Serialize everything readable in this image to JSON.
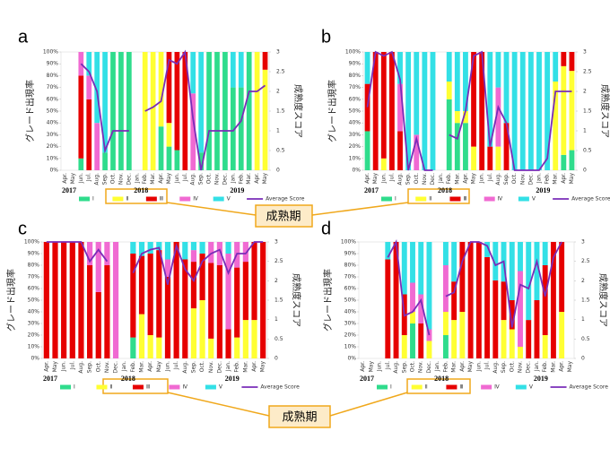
{
  "chart_data": [
    {
      "type": "bar",
      "panel": "a",
      "ylabel": "グレード出現率",
      "y2label": "成熟度スコア",
      "years": [
        "2017",
        "2018",
        "2019"
      ],
      "categories": [
        "Apr.",
        "May",
        "Jun.",
        "Jul.",
        "Aug.",
        "Sep.",
        "Oct.",
        "Nov.",
        "Dec.",
        "Jan.",
        "Feb.",
        "Mar.",
        "Apr.",
        "May",
        "Jun.",
        "Jul.",
        "Aug.",
        "Sep.",
        "Oct.",
        "Nov.",
        "Dec.",
        "Jan.",
        "Feb.",
        "Mar.",
        "Apr.",
        "May"
      ],
      "series": [
        {
          "name": "Ⅰ",
          "color": "#2fdc8c",
          "values": [
            0,
            0,
            10,
            0,
            0,
            15,
            100,
            100,
            100,
            0,
            0,
            0,
            37,
            20,
            17,
            0,
            0,
            15,
            100,
            100,
            100,
            70,
            70,
            100,
            0,
            0
          ]
        },
        {
          "name": "Ⅱ",
          "color": "#ffff33",
          "values": [
            0,
            0,
            0,
            0,
            0,
            0,
            0,
            0,
            0,
            0,
            100,
            100,
            63,
            20,
            0,
            0,
            0,
            0,
            0,
            0,
            0,
            0,
            0,
            0,
            100,
            85
          ]
        },
        {
          "name": "Ⅲ",
          "color": "#e60000",
          "values": [
            0,
            0,
            70,
            60,
            0,
            0,
            0,
            0,
            0,
            0,
            0,
            0,
            0,
            60,
            83,
            100,
            0,
            0,
            0,
            0,
            0,
            0,
            0,
            0,
            0,
            15
          ]
        },
        {
          "name": "Ⅳ",
          "color": "#f06ad2",
          "values": [
            0,
            0,
            20,
            20,
            40,
            0,
            0,
            0,
            0,
            0,
            0,
            0,
            0,
            0,
            0,
            0,
            65,
            0,
            0,
            0,
            0,
            0,
            0,
            0,
            0,
            0
          ]
        },
        {
          "name": "Ⅴ",
          "color": "#33e0e6",
          "values": [
            0,
            0,
            0,
            20,
            60,
            85,
            0,
            0,
            0,
            0,
            0,
            0,
            0,
            0,
            0,
            0,
            35,
            85,
            0,
            0,
            0,
            30,
            30,
            0,
            0,
            0
          ]
        },
        {
          "name": "Average Score",
          "color": "#7a2db8",
          "type": "line",
          "axis": "y2",
          "values": [
            null,
            null,
            2.7,
            2.5,
            2,
            0.5,
            1,
            1,
            1,
            null,
            1.5,
            1.6,
            1.75,
            2.8,
            2.7,
            3,
            1.3,
            0,
            1,
            1,
            1,
            1,
            1.25,
            2,
            2,
            2.15
          ]
        }
      ],
      "ylim": [
        0,
        100
      ],
      "yticks": [
        {
          "value": 0,
          "label": "0%"
        },
        {
          "value": 10,
          "label": "10%"
        },
        {
          "value": 20,
          "label": "20%"
        },
        {
          "value": 30,
          "label": "30%"
        },
        {
          "value": 40,
          "label": "40%"
        },
        {
          "value": 50,
          "label": "50%"
        },
        {
          "value": 60,
          "label": "60%"
        },
        {
          "value": 70,
          "label": "70%"
        },
        {
          "value": 80,
          "label": "80%"
        },
        {
          "value": 90,
          "label": "90%"
        },
        {
          "value": 100,
          "label": "100%"
        }
      ],
      "y2lim": [
        0,
        3
      ],
      "y2ticks": [
        0,
        0.5,
        1,
        1.5,
        2,
        2.5,
        3
      ],
      "stacked": true
    },
    {
      "type": "bar",
      "panel": "b",
      "ylabel": "グレード出現率",
      "y2label": "成熟度スコア",
      "years": [
        "2017",
        "2018",
        "2019"
      ],
      "categories": [
        "Apr.",
        "May",
        "Jun.",
        "Jul.",
        "Aug.",
        "Sep.",
        "Oct.",
        "Nov.",
        "Dec.",
        "Jan.",
        "Feb.",
        "Mar.",
        "Apr.",
        "May",
        "Jun.",
        "Jul.",
        "Aug.",
        "Sep.",
        "Oct.",
        "Nov.",
        "Dec.",
        "Jan.",
        "Feb.",
        "Mar.",
        "Apr.",
        "May"
      ],
      "series": [
        {
          "name": "Ⅰ",
          "color": "#2fdc8c",
          "values": [
            33,
            0,
            0,
            0,
            0,
            0,
            0,
            0,
            0,
            0,
            60,
            40,
            40,
            0,
            0,
            0,
            0,
            0,
            0,
            0,
            0,
            0,
            0,
            0,
            13,
            17
          ]
        },
        {
          "name": "Ⅱ",
          "color": "#ffff33",
          "values": [
            0,
            0,
            10,
            0,
            0,
            0,
            0,
            0,
            0,
            0,
            15,
            10,
            10,
            20,
            0,
            0,
            20,
            0,
            0,
            0,
            0,
            0,
            0,
            75,
            75,
            67
          ]
        },
        {
          "name": "Ⅲ",
          "color": "#e60000",
          "values": [
            40,
            100,
            90,
            100,
            33,
            0,
            0,
            0,
            0,
            0,
            0,
            0,
            0,
            80,
            100,
            20,
            0,
            40,
            0,
            0,
            0,
            0,
            0,
            0,
            12,
            16
          ]
        },
        {
          "name": "Ⅳ",
          "color": "#f06ad2",
          "values": [
            0,
            0,
            0,
            0,
            40,
            0,
            30,
            0,
            0,
            0,
            0,
            0,
            0,
            0,
            0,
            0,
            50,
            0,
            0,
            0,
            0,
            0,
            0,
            0,
            0,
            0
          ]
        },
        {
          "name": "Ⅴ",
          "color": "#33e0e6",
          "values": [
            27,
            0,
            0,
            0,
            27,
            100,
            70,
            100,
            100,
            0,
            25,
            50,
            50,
            0,
            0,
            80,
            30,
            60,
            100,
            100,
            100,
            100,
            100,
            25,
            0,
            0
          ]
        },
        {
          "name": "Average Score",
          "color": "#7a2db8",
          "type": "line",
          "axis": "y2",
          "values": [
            1.6,
            3,
            2.9,
            3,
            2.3,
            0,
            0.8,
            0,
            0,
            null,
            0.9,
            0.8,
            1.5,
            2.9,
            3,
            0.6,
            1.6,
            1.2,
            0,
            0,
            0,
            0,
            0.3,
            2,
            2,
            2
          ]
        }
      ],
      "ylim": [
        0,
        100
      ],
      "yticks": [
        {
          "value": 0,
          "label": "0%"
        },
        {
          "value": 10,
          "label": "10%"
        },
        {
          "value": 20,
          "label": "20%"
        },
        {
          "value": 30,
          "label": "30%"
        },
        {
          "value": 40,
          "label": "40%"
        },
        {
          "value": 50,
          "label": "50%"
        },
        {
          "value": 60,
          "label": "60%"
        },
        {
          "value": 70,
          "label": "70%"
        },
        {
          "value": 80,
          "label": "80%"
        },
        {
          "value": 90,
          "label": "90%"
        },
        {
          "value": 100,
          "label": "100%"
        }
      ],
      "y2lim": [
        0,
        3
      ],
      "y2ticks": [
        0,
        0.5,
        1,
        1.5,
        2,
        2.5,
        3
      ],
      "stacked": true
    },
    {
      "type": "bar",
      "panel": "c",
      "ylabel": "グレード出現率",
      "y2label": "成熟度スコア",
      "years": [
        "2017",
        "2018",
        "2019"
      ],
      "categories": [
        "Apr.",
        "May",
        "Jun.",
        "Jul.",
        "Aug.",
        "Sep.",
        "Oct.",
        "Nov.",
        "Dec.",
        "Jan.",
        "Feb.",
        "Mar.",
        "Apr.",
        "May",
        "Jun.",
        "Jul.",
        "Aug.",
        "Sep.",
        "Oct.",
        "Nov.",
        "Dec.",
        "Jan.",
        "Feb.",
        "Mar.",
        "Apr.",
        "May"
      ],
      "series": [
        {
          "name": "Ⅰ",
          "color": "#2fdc8c",
          "values": [
            0,
            0,
            0,
            0,
            0,
            0,
            0,
            0,
            0,
            0,
            18,
            0,
            0,
            0,
            0,
            0,
            0,
            0,
            0,
            0,
            0,
            0,
            0,
            0,
            0,
            0
          ]
        },
        {
          "name": "Ⅱ",
          "color": "#ffff33",
          "values": [
            0,
            0,
            0,
            0,
            0,
            0,
            0,
            0,
            0,
            0,
            0,
            38,
            20,
            18,
            0,
            0,
            0,
            43,
            50,
            17,
            0,
            0,
            18,
            33,
            33,
            0
          ]
        },
        {
          "name": "Ⅲ",
          "color": "#e60000",
          "values": [
            100,
            100,
            100,
            100,
            100,
            80,
            57,
            80,
            0,
            0,
            72,
            50,
            70,
            75,
            70,
            100,
            85,
            40,
            40,
            65,
            80,
            25,
            60,
            50,
            67,
            100
          ]
        },
        {
          "name": "Ⅳ",
          "color": "#f06ad2",
          "values": [
            0,
            0,
            0,
            0,
            0,
            20,
            43,
            20,
            100,
            0,
            0,
            0,
            0,
            0,
            15,
            0,
            0,
            10,
            0,
            18,
            20,
            65,
            22,
            17,
            0,
            0
          ]
        },
        {
          "name": "Ⅴ",
          "color": "#33e0e6",
          "values": [
            0,
            0,
            0,
            0,
            0,
            0,
            0,
            0,
            0,
            0,
            10,
            12,
            10,
            7,
            15,
            0,
            15,
            7,
            10,
            0,
            0,
            10,
            0,
            0,
            0,
            0
          ]
        },
        {
          "name": "Average Score",
          "color": "#7a2db8",
          "type": "line",
          "axis": "y2",
          "values": [
            3,
            3,
            3,
            3,
            3,
            2.5,
            2.8,
            2.5,
            null,
            null,
            2.2,
            2.7,
            2.8,
            2.85,
            1.9,
            2.9,
            2.3,
            2,
            2.5,
            2.7,
            2.8,
            2.2,
            2.7,
            2.7,
            3,
            3
          ]
        }
      ],
      "ylim": [
        0,
        100
      ],
      "yticks": [
        {
          "value": 0,
          "label": "0%"
        },
        {
          "value": 10,
          "label": "10%"
        },
        {
          "value": 20,
          "label": "20%"
        },
        {
          "value": 30,
          "label": "30%"
        },
        {
          "value": 40,
          "label": "40%"
        },
        {
          "value": 50,
          "label": "50%"
        },
        {
          "value": 60,
          "label": "60%"
        },
        {
          "value": 70,
          "label": "70%"
        },
        {
          "value": 80,
          "label": "80%"
        },
        {
          "value": 90,
          "label": "90%"
        },
        {
          "value": 100,
          "label": "100%"
        }
      ],
      "y2lim": [
        0,
        3
      ],
      "y2ticks": [
        0,
        0.5,
        1,
        1.5,
        2,
        2.5,
        3
      ],
      "stacked": true
    },
    {
      "type": "bar",
      "panel": "d",
      "ylabel": "グレード出現率",
      "y2label": "成熟度スコア",
      "years": [
        "2017",
        "2018",
        "2019"
      ],
      "categories": [
        "Apr.",
        "May",
        "Jun.",
        "Jul.",
        "Aug.",
        "Sep.",
        "Oct.",
        "Nov.",
        "Dec.",
        "Jan.",
        "Feb.",
        "Mar.",
        "Apr.",
        "May",
        "Jun.",
        "Jul.",
        "Aug.",
        "Sep.",
        "Oct.",
        "Nov.",
        "Dec.",
        "Jan.",
        "Feb.",
        "Mar.",
        "Apr.",
        "May"
      ],
      "series": [
        {
          "name": "Ⅰ",
          "color": "#2fdc8c",
          "values": [
            0,
            0,
            0,
            0,
            0,
            0,
            30,
            0,
            0,
            0,
            20,
            0,
            0,
            0,
            0,
            0,
            0,
            0,
            0,
            0,
            0,
            0,
            0,
            0,
            0,
            0
          ]
        },
        {
          "name": "Ⅱ",
          "color": "#ffff33",
          "values": [
            0,
            0,
            0,
            0,
            0,
            20,
            10,
            0,
            15,
            0,
            20,
            33,
            40,
            0,
            0,
            0,
            0,
            33,
            25,
            10,
            0,
            0,
            20,
            0,
            40,
            0
          ]
        },
        {
          "name": "Ⅲ",
          "color": "#e60000",
          "values": [
            0,
            0,
            0,
            85,
            100,
            35,
            0,
            30,
            0,
            0,
            0,
            33,
            60,
            100,
            100,
            87,
            67,
            33,
            25,
            0,
            33,
            50,
            60,
            100,
            60,
            0
          ]
        },
        {
          "name": "Ⅳ",
          "color": "#f06ad2",
          "values": [
            0,
            0,
            0,
            0,
            0,
            0,
            25,
            25,
            10,
            0,
            40,
            0,
            0,
            0,
            0,
            0,
            0,
            0,
            0,
            65,
            0,
            0,
            0,
            0,
            0,
            0
          ]
        },
        {
          "name": "Ⅴ",
          "color": "#33e0e6",
          "values": [
            0,
            0,
            0,
            15,
            0,
            45,
            35,
            45,
            75,
            0,
            20,
            34,
            0,
            0,
            0,
            13,
            33,
            34,
            50,
            25,
            67,
            50,
            20,
            0,
            0,
            0
          ]
        },
        {
          "name": "Average Score",
          "color": "#7a2db8",
          "type": "line",
          "axis": "y2",
          "values": [
            null,
            null,
            null,
            2.6,
            3,
            1.1,
            1.2,
            1.5,
            0.6,
            null,
            1.6,
            1.7,
            2.5,
            3,
            3,
            2.9,
            2.4,
            2.5,
            0.8,
            1.9,
            1.8,
            2.5,
            1.6,
            2.6,
            3,
            null
          ]
        }
      ],
      "ylim": [
        0,
        100
      ],
      "yticks": [
        {
          "value": 0,
          "label": "0%"
        },
        {
          "value": 10,
          "label": "10%"
        },
        {
          "value": 20,
          "label": "20%"
        },
        {
          "value": 30,
          "label": "30%"
        },
        {
          "value": 40,
          "label": "40%"
        },
        {
          "value": 50,
          "label": "50%"
        },
        {
          "value": 60,
          "label": "60%"
        },
        {
          "value": 70,
          "label": "70%"
        },
        {
          "value": 80,
          "label": "80%"
        },
        {
          "value": 90,
          "label": "90%"
        },
        {
          "value": 100,
          "label": "100%"
        }
      ],
      "y2lim": [
        0,
        3
      ],
      "y2ticks": [
        0,
        0.5,
        1,
        1.5,
        2,
        2.5,
        3
      ],
      "stacked": true
    }
  ],
  "annotations": [
    "成熟期",
    "成熟期"
  ]
}
